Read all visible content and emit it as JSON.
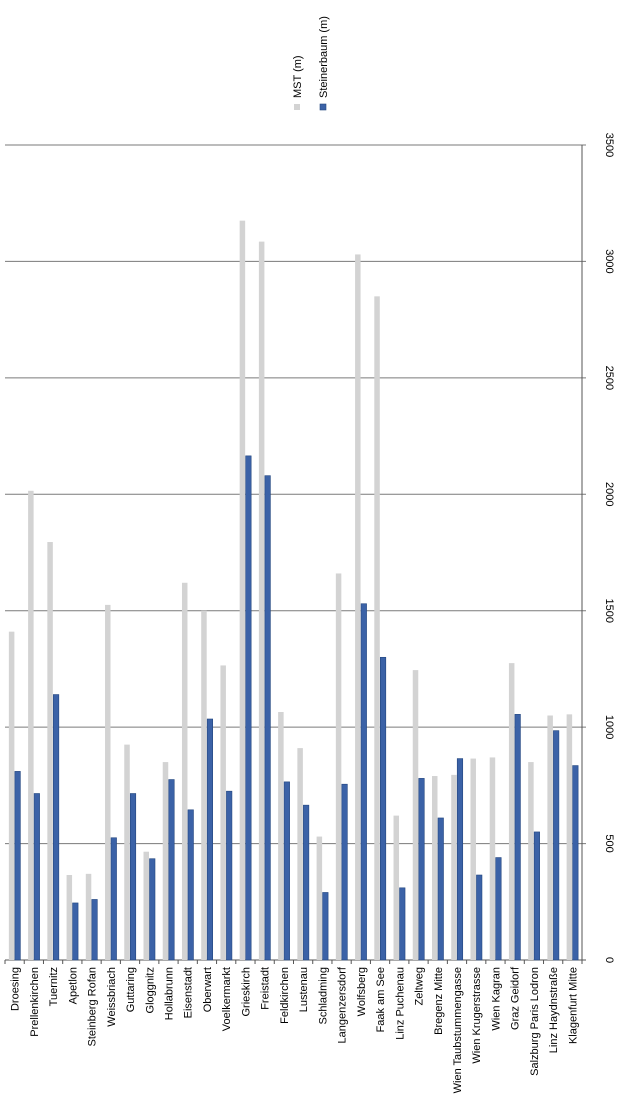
{
  "chart_data": {
    "type": "bar",
    "orientation": "rotated-90",
    "categories": [
      "Droesing",
      "Prellenkirchen",
      "Tuernitz",
      "Apetlon",
      "Steinberg Rofan",
      "Weissbriach",
      "Guttaring",
      "Gloggnitz",
      "Hollabrunn",
      "Eisenstadt",
      "Oberwart",
      "Voelkermarkt",
      "Grieskirch",
      "Freistadt",
      "Feldkirchen",
      "Lustenau",
      "Schladming",
      "Langenzersdorf",
      "Wolfsberg",
      "Faak am See",
      "Linz Puchenau",
      "Zeltweg",
      "Bregenz Mitte",
      "Wien Taubstummengasse",
      "Wien Krugerstrasse",
      "Wien Kagran",
      "Graz Geidorf",
      "Salzburg Paris Lodron",
      "Linz Haydnstraße",
      "Klagenfurt Mitte"
    ],
    "series": [
      {
        "name": "MST (m)",
        "color": "#d3d3d3",
        "values": [
          1410,
          2015,
          1795,
          365,
          370,
          1525,
          925,
          465,
          850,
          1620,
          1500,
          1265,
          3175,
          3085,
          1065,
          910,
          530,
          1660,
          3030,
          2850,
          620,
          1245,
          790,
          795,
          865,
          870,
          1275,
          850,
          1050,
          1055
        ]
      },
      {
        "name": "Steinerbaum (m)",
        "color": "#3b62a7",
        "values": [
          810,
          715,
          1140,
          245,
          260,
          525,
          715,
          435,
          775,
          645,
          1035,
          725,
          2165,
          2080,
          765,
          665,
          290,
          755,
          1530,
          1300,
          310,
          780,
          610,
          865,
          365,
          440,
          1055,
          550,
          985,
          835
        ]
      }
    ],
    "ylim": [
      0,
      3500
    ],
    "yticks": [
      0,
      500,
      1000,
      1500,
      2000,
      2500,
      3000,
      3500
    ],
    "grid": true,
    "legend": "top"
  }
}
